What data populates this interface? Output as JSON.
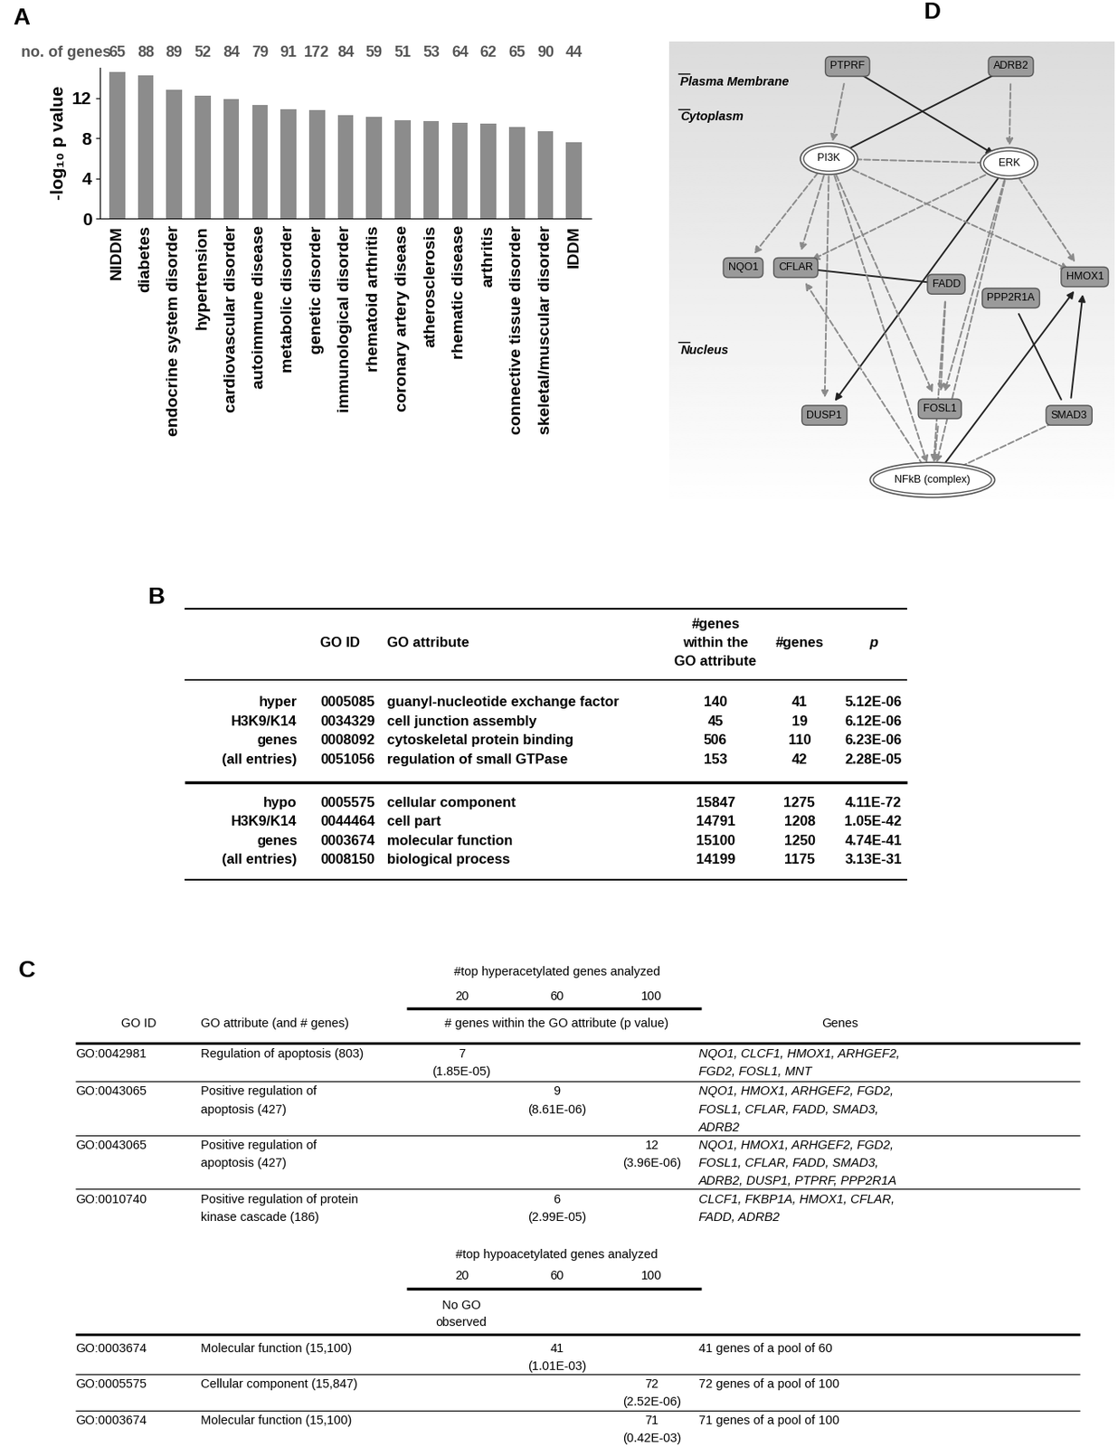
{
  "chart_data": {
    "panel": "A",
    "type": "bar",
    "categories": [
      "NIDDM",
      "diabetes",
      "endocrine system disorder",
      "hypertension",
      "cardiovascular disorder",
      "autoimmune disease",
      "metabolic disorder",
      "genetic disorder",
      "immunological disorder",
      "rhematoid arthritis",
      "coronary artery disease",
      "atherosclerosis",
      "rhematic disease",
      "arthritis",
      "connective tissue disorder",
      "skeletal/muscular disorder",
      "IDDM"
    ],
    "values": [
      14.6,
      14.2,
      12.8,
      12.2,
      11.9,
      11.3,
      10.9,
      10.8,
      10.3,
      10.1,
      9.8,
      9.7,
      9.5,
      9.4,
      9.1,
      8.7,
      7.6
    ],
    "gene_counts_label": "no. of genes",
    "gene_counts": [
      65,
      88,
      89,
      52,
      84,
      79,
      91,
      172,
      84,
      59,
      51,
      53,
      64,
      62,
      65,
      90,
      44
    ],
    "y_label": "-log₁₀ p value",
    "ylim": [
      0,
      15
    ],
    "yticks": [
      0,
      4,
      8,
      12
    ],
    "color": "#8c8c8c"
  },
  "table_b": {
    "panel": "B",
    "header": [
      "GO ID",
      "GO attribute",
      "#genes\nwithin the\nGO attribute",
      "#genes",
      "p"
    ],
    "groups": [
      {
        "label": "hyper\nH3K9/K14\ngenes\n(all entries)",
        "rows": [
          {
            "go_id": "0005085",
            "attribute": "guanyl-nucleotide exchange factor",
            "genes_within": 140,
            "genes": 41,
            "p": "5.12E-06"
          },
          {
            "go_id": "0034329",
            "attribute": "cell junction assembly",
            "genes_within": 45,
            "genes": 19,
            "p": "6.12E-06"
          },
          {
            "go_id": "0008092",
            "attribute": "cytoskeletal protein binding",
            "genes_within": 506,
            "genes": 110,
            "p": "6.23E-06"
          },
          {
            "go_id": "0051056",
            "attribute": "regulation of small GTPase",
            "genes_within": 153,
            "genes": 42,
            "p": "2.28E-05"
          }
        ]
      },
      {
        "label": "hypo\nH3K9/K14\ngenes\n(all entries)",
        "rows": [
          {
            "go_id": "0005575",
            "attribute": "cellular component",
            "genes_within": 15847,
            "genes": 1275,
            "p": "4.11E-72"
          },
          {
            "go_id": "0044464",
            "attribute": "cell part",
            "genes_within": 14791,
            "genes": 1208,
            "p": "1.05E-42"
          },
          {
            "go_id": "0003674",
            "attribute": "molecular function",
            "genes_within": 15100,
            "genes": 1250,
            "p": "4.74E-41"
          },
          {
            "go_id": "0008150",
            "attribute": "biological process",
            "genes_within": 14199,
            "genes": 1175,
            "p": "3.13E-31"
          }
        ]
      }
    ]
  },
  "table_c": {
    "panel": "C",
    "columns_header": [
      "GO ID",
      "GO attribute (and # genes)",
      "Genes"
    ],
    "sections": [
      {
        "title": "#top hyperacetylated genes analyzed",
        "top_counts": [
          20,
          60,
          100
        ],
        "subtitle": "# genes within the GO attribute (p value)",
        "rows": [
          {
            "go_id": "GO:0042981",
            "attribute": "Regulation of apoptosis (803)",
            "top": 20,
            "count": 7,
            "p": "(1.85E-05)",
            "genes": "NQO1, CLCF1, HMOX1, ARHGEF2,\nFGD2, FOSL1, MNT"
          },
          {
            "go_id": "GO:0043065",
            "attribute": "Positive regulation of\napoptosis (427)",
            "top": 60,
            "count": 9,
            "p": "(8.61E-06)",
            "genes": "NQO1, HMOX1, ARHGEF2, FGD2,\nFOSL1, CFLAR, FADD, SMAD3,\nADRB2"
          },
          {
            "go_id": "GO:0043065",
            "attribute": "Positive regulation of\napoptosis (427)",
            "top": 100,
            "count": 12,
            "p": "(3.96E-06)",
            "genes": "NQO1, HMOX1, ARHGEF2, FGD2,\nFOSL1, CFLAR, FADD, SMAD3,\nADRB2, DUSP1, PTPRF, PPP2R1A"
          },
          {
            "go_id": "GO:0010740",
            "attribute": "Positive regulation of protein\nkinase cascade (186)",
            "top": 60,
            "count": 6,
            "p": "(2.99E-05)",
            "genes": "CLCF1, FKBP1A, HMOX1, CFLAR,\nFADD, ADRB2"
          }
        ]
      },
      {
        "title": "#top hypoacetylated genes analyzed",
        "top_counts": [
          20,
          60,
          100
        ],
        "note": {
          "top": 20,
          "text": "No GO\nobserved"
        },
        "rows": [
          {
            "go_id": "GO:0003674",
            "attribute": "Molecular function (15,100)",
            "top": 60,
            "count": 41,
            "p": "(1.01E-03)",
            "genes": "41 genes of a pool of 60"
          },
          {
            "go_id": "GO:0005575",
            "attribute": "Cellular component (15,847)",
            "top": 100,
            "count": 72,
            "p": "(2.52E-06)",
            "genes": "72 genes of a pool of 100"
          },
          {
            "go_id": "GO:0003674",
            "attribute": "Molecular function (15,100)",
            "top": 100,
            "count": 71,
            "p": "(0.42E-03)",
            "genes": "71 genes of a pool of 100"
          }
        ]
      }
    ]
  },
  "diagram_d": {
    "panel": "D",
    "compartments": [
      "Plasma Membrane",
      "Cytoplasm",
      "Nucleus"
    ],
    "nodes": [
      "PTPRF",
      "ADRB2",
      "PI3K",
      "ERK",
      "NQO1",
      "CFLAR",
      "FADD",
      "PPP2R1A",
      "HMOX1",
      "DUSP1",
      "FOSL1",
      "SMAD3",
      "NFkB (complex)"
    ],
    "edges": [
      {
        "from": "PTPRF",
        "to": "ERK",
        "line_style": "solid",
        "arrow": true
      },
      {
        "from": "ADRB2",
        "to": "PI3K",
        "line_style": "solid",
        "arrow": false
      },
      {
        "from": "CFLAR",
        "to": "FADD",
        "line_style": "solid",
        "arrow": false
      },
      {
        "from": "ERK",
        "to": "DUSP1",
        "line_style": "solid",
        "arrow": true
      },
      {
        "from": "NFkB (complex)",
        "to": "HMOX1",
        "line_style": "solid",
        "arrow": true
      },
      {
        "from": "PPP2R1A",
        "to": "SMAD3",
        "line_style": "solid",
        "arrow": false
      },
      {
        "from": "SMAD3",
        "to": "HMOX1",
        "line_style": "solid",
        "arrow": true
      },
      {
        "from": "PTPRF",
        "to": "PI3K",
        "line_style": "dashed",
        "arrow": true
      },
      {
        "from": "ADRB2",
        "to": "ERK",
        "line_style": "dashed",
        "arrow": true
      },
      {
        "from": "PI3K",
        "to": "ERK",
        "line_style": "dashed",
        "arrow": true
      },
      {
        "from": "PI3K",
        "to": "NQO1",
        "line_style": "dashed",
        "arrow": true
      },
      {
        "from": "PI3K",
        "to": "CFLAR",
        "line_style": "dashed",
        "arrow": true
      },
      {
        "from": "PI3K",
        "to": "DUSP1",
        "line_style": "dashed",
        "arrow": true
      },
      {
        "from": "PI3K",
        "to": "FOSL1",
        "line_style": "dashed",
        "arrow": true
      },
      {
        "from": "PI3K",
        "to": "NFkB (complex)",
        "line_style": "dashed",
        "arrow": true
      },
      {
        "from": "PI3K",
        "to": "HMOX1",
        "line_style": "dashed",
        "arrow": true
      },
      {
        "from": "ERK",
        "to": "CFLAR",
        "line_style": "dashed",
        "arrow": true
      },
      {
        "from": "ERK",
        "to": "FOSL1",
        "line_style": "dashed",
        "arrow": true
      },
      {
        "from": "ERK",
        "to": "NFkB (complex)",
        "line_style": "dashed",
        "arrow": true
      },
      {
        "from": "ERK",
        "to": "HMOX1",
        "line_style": "dashed",
        "arrow": true
      },
      {
        "from": "FADD",
        "to": "FOSL1",
        "line_style": "dashed",
        "arrow": true
      },
      {
        "from": "FADD",
        "to": "NFkB (complex)",
        "line_style": "dashed",
        "arrow": true
      },
      {
        "from": "NFkB (complex)",
        "to": "CFLAR",
        "line_style": "dashed",
        "arrow": true
      },
      {
        "from": "FOSL1",
        "to": "NFkB (complex)",
        "line_style": "dashed",
        "arrow": true
      },
      {
        "from": "SMAD3",
        "to": "NFkB (complex)",
        "line_style": "dashed",
        "arrow": true
      }
    ]
  }
}
